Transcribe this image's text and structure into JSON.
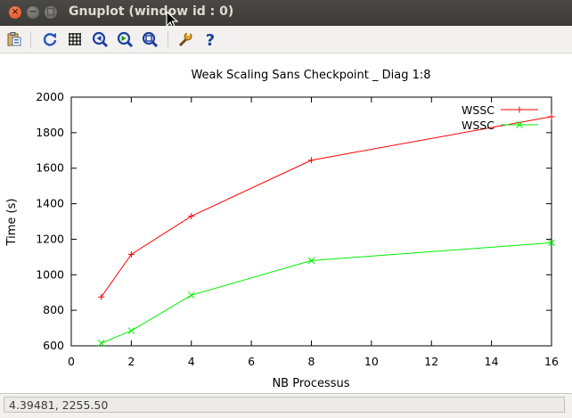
{
  "window": {
    "title": "Gnuplot (window id : 0)",
    "close_glyph": "×",
    "min_glyph": "−",
    "max_glyph": "□"
  },
  "toolbar": {
    "items": [
      {
        "icon": "copy-to-clipboard-icon"
      },
      {
        "icon": "replot-icon"
      },
      {
        "icon": "grid-icon"
      },
      {
        "icon": "zoom-previous-icon"
      },
      {
        "icon": "zoom-next-icon"
      },
      {
        "icon": "autoscale-icon"
      },
      {
        "icon": "preferences-icon"
      },
      {
        "icon": "help-icon"
      }
    ]
  },
  "status": {
    "coordinates": "4.39481,  2255.50"
  },
  "chart_data": {
    "type": "line",
    "title": "Weak Scaling Sans Checkpoint _ Diag 1:8",
    "xlabel": "NB Processus",
    "ylabel": "Time (s)",
    "xlim": [
      0,
      16
    ],
    "ylim": [
      600,
      2000
    ],
    "xticks": [
      "0",
      "2",
      "4",
      "6",
      "8",
      "10",
      "12",
      "14",
      "16"
    ],
    "yticks": [
      "600",
      "800",
      "1000",
      "1200",
      "1400",
      "1600",
      "1800",
      "2000"
    ],
    "grid": false,
    "legend_position": "top-right",
    "series": [
      {
        "name": "WSSC",
        "color": "#ff0000",
        "marker": "+",
        "x": [
          1,
          2,
          4,
          8,
          16
        ],
        "y": [
          875,
          1115,
          1330,
          1645,
          1890
        ]
      },
      {
        "name": "WSSC",
        "color": "#00ee00",
        "marker": "x",
        "x": [
          1,
          2,
          4,
          8,
          16
        ],
        "y": [
          615,
          685,
          885,
          1080,
          1180
        ]
      }
    ]
  }
}
